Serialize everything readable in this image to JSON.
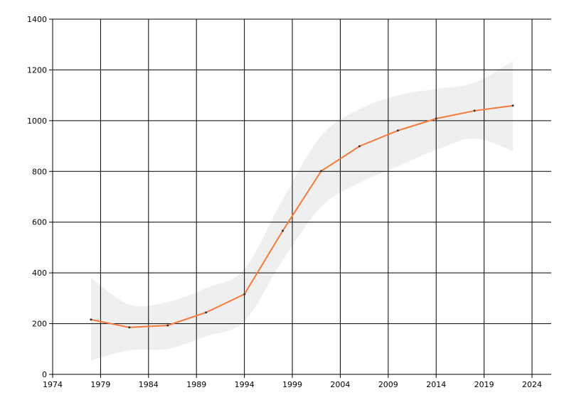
{
  "chart_data": {
    "type": "line",
    "x": [
      1978,
      1982,
      1986,
      1990,
      1994,
      1998,
      2002,
      2006,
      2010,
      2014,
      2018,
      2022
    ],
    "values": [
      216,
      185,
      193,
      244,
      316,
      566,
      801,
      899,
      961,
      1008,
      1039,
      1059
    ],
    "color": "#f5793a",
    "band": {
      "upper": [
        380,
        275,
        285,
        340,
        415,
        690,
        940,
        1045,
        1100,
        1125,
        1150,
        1235
      ],
      "lower": [
        55,
        95,
        100,
        150,
        210,
        450,
        660,
        755,
        820,
        885,
        930,
        880
      ],
      "color": "#efefef"
    },
    "xlim": [
      1974,
      2026
    ],
    "xticks": [
      1974,
      1979,
      1984,
      1989,
      1994,
      1999,
      2004,
      2009,
      2014,
      2019,
      2024
    ],
    "ylim": [
      0,
      1400
    ],
    "yticks": [
      0,
      200,
      400,
      600,
      800,
      1000,
      1200,
      1400
    ],
    "grid": true
  }
}
